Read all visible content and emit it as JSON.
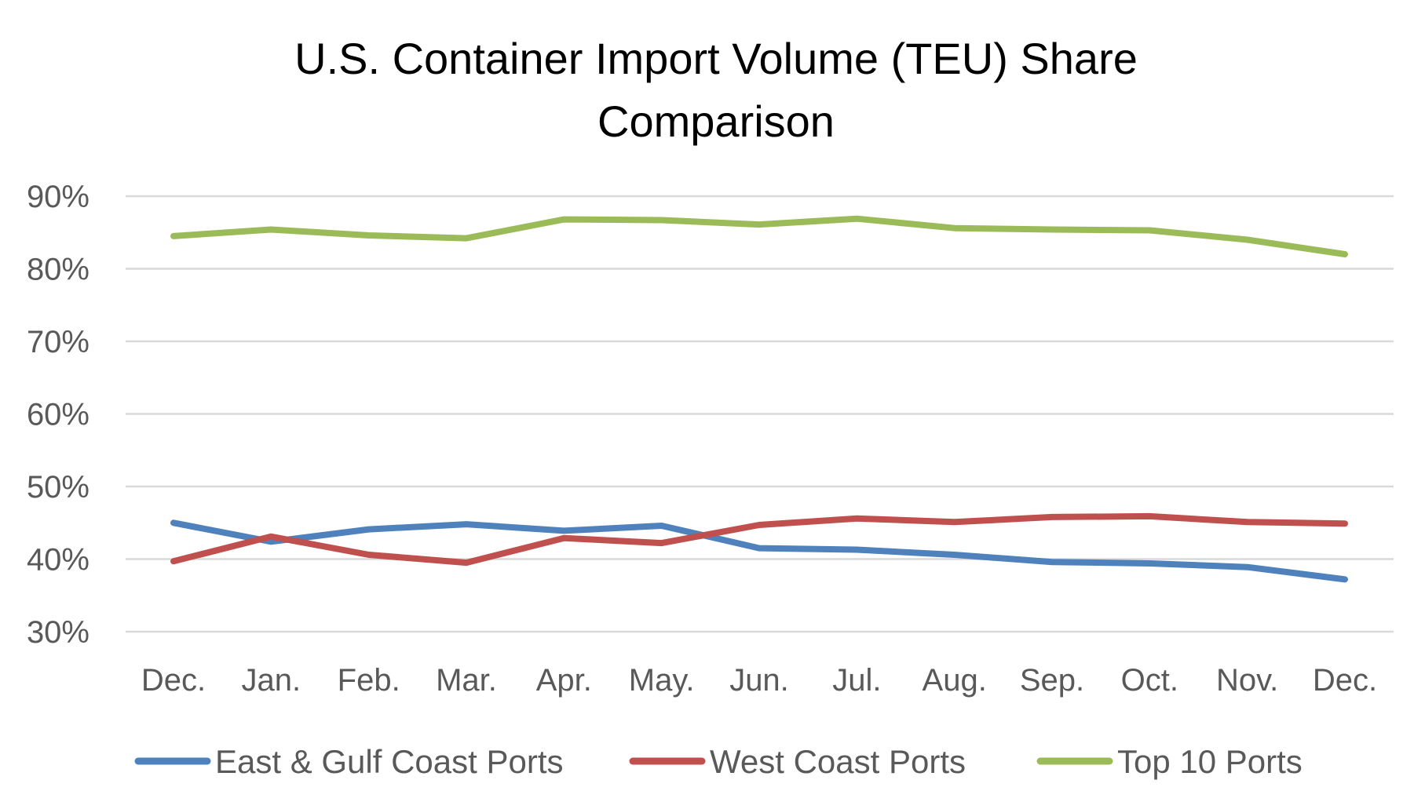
{
  "chart_data": {
    "type": "line",
    "title": "U.S. Container Import Volume (TEU) Share Comparison",
    "title_lines": [
      "U.S. Container Import Volume (TEU) Share",
      "Comparison"
    ],
    "xlabel": "",
    "ylabel": "",
    "categories": [
      "Dec.",
      "Jan.",
      "Feb.",
      "Mar.",
      "Apr.",
      "May.",
      "Jun.",
      "Jul.",
      "Aug.",
      "Sep.",
      "Oct.",
      "Nov.",
      "Dec."
    ],
    "ylim": [
      30,
      90
    ],
    "yticks": [
      30,
      40,
      50,
      60,
      70,
      80,
      90
    ],
    "ytick_labels": [
      "30%",
      "40%",
      "50%",
      "60%",
      "70%",
      "80%",
      "90%"
    ],
    "grid": true,
    "legend_position": "bottom",
    "series": [
      {
        "name": "East & Gulf Coast Ports",
        "color": "#4f81bd",
        "values": [
          45.0,
          42.4,
          44.1,
          44.8,
          43.9,
          44.6,
          41.5,
          41.3,
          40.6,
          39.6,
          39.4,
          38.9,
          37.2
        ]
      },
      {
        "name": "West Coast Ports",
        "color": "#c0504d",
        "values": [
          39.7,
          43.1,
          40.6,
          39.5,
          42.9,
          42.2,
          44.7,
          45.6,
          45.1,
          45.8,
          45.9,
          45.1,
          44.9
        ]
      },
      {
        "name": "Top 10 Ports",
        "color": "#9bbb59",
        "values": [
          84.5,
          85.4,
          84.6,
          84.2,
          86.8,
          86.7,
          86.1,
          86.9,
          85.6,
          85.4,
          85.3,
          84.0,
          82.0
        ]
      }
    ]
  }
}
